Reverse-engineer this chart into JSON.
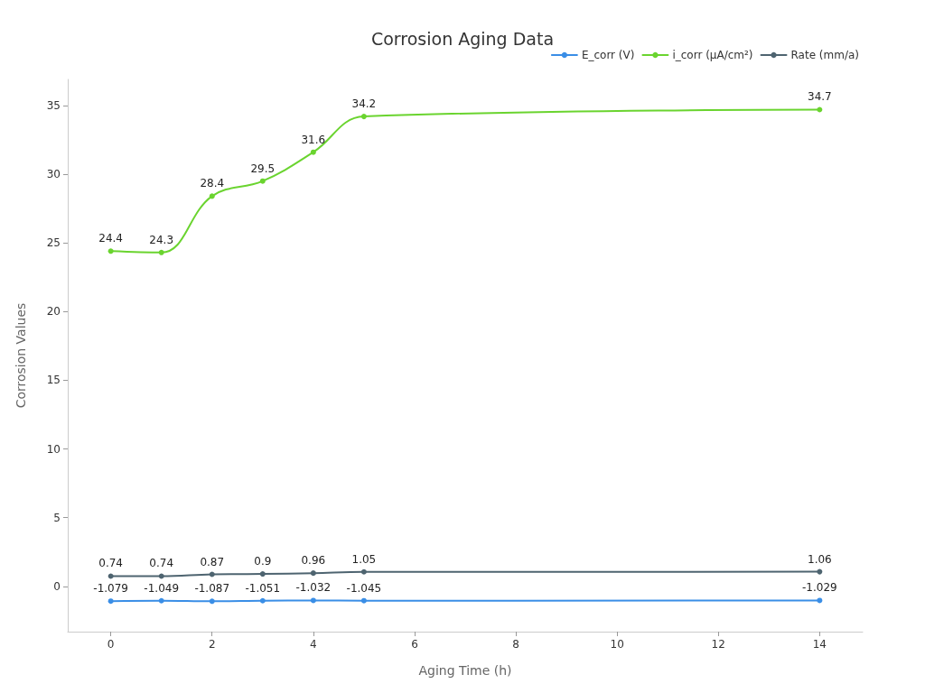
{
  "chart_data": {
    "type": "line",
    "title": "Corrosion Aging Data",
    "xlabel": "Aging Time (h)",
    "ylabel": "Corrosion Values",
    "x": [
      0,
      1,
      2,
      3,
      4,
      5,
      14
    ],
    "series": [
      {
        "name": "E_corr (V)",
        "color": "#3a8ee6",
        "values": [
          -1.079,
          -1.049,
          -1.087,
          -1.051,
          -1.032,
          -1.045,
          -1.029
        ]
      },
      {
        "name": "i_corr (μA/cm²)",
        "color": "#6ad42f",
        "values": [
          24.4,
          24.3,
          28.4,
          29.5,
          31.6,
          34.2,
          34.7
        ]
      },
      {
        "name": "Rate (mm/a)",
        "color": "#4e6470",
        "values": [
          0.74,
          0.74,
          0.87,
          0.9,
          0.96,
          1.05,
          1.06
        ]
      }
    ],
    "xlim": [
      -0.85,
      14.85
    ],
    "xticks": [
      0,
      2,
      4,
      6,
      8,
      10,
      12,
      14
    ],
    "ylim": [
      -3.3,
      36.9
    ],
    "yticks": [
      0,
      5,
      10,
      15,
      20,
      25,
      30,
      35
    ],
    "grid": false,
    "legend": "top right",
    "marker": "circle",
    "line_style": "solid",
    "data_labels": true
  }
}
